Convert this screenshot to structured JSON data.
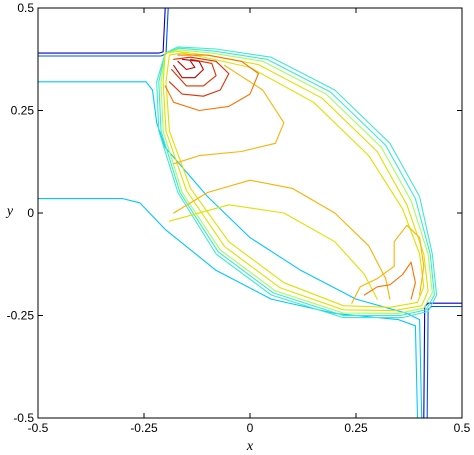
{
  "chart_data": {
    "type": "contour",
    "title": "",
    "xlabel": "x",
    "ylabel": "y",
    "xlim": [
      -0.5,
      0.5
    ],
    "ylim": [
      -0.5,
      0.5
    ],
    "xticks": [
      "-0.5",
      "-0.25",
      "0",
      "0.25",
      "0.5"
    ],
    "yticks": [
      "-0.5",
      "-0.25",
      "0",
      "0.25",
      "0.5"
    ],
    "grid": false,
    "legend": "none",
    "colormap": [
      "#0000c8",
      "#0050ff",
      "#00c8ff",
      "#40e8d0",
      "#a0ff60",
      "#e0e000",
      "#ffb000",
      "#ff7000",
      "#e03000",
      "#c00000"
    ],
    "series": [
      {
        "level": 0,
        "points": [
          [
            -0.5,
            0.39
          ],
          [
            -0.215,
            0.39
          ],
          [
            -0.205,
            0.393
          ],
          [
            -0.2,
            0.5
          ]
        ]
      },
      {
        "level": 1,
        "points": [
          [
            -0.5,
            0.383
          ],
          [
            -0.21,
            0.383
          ],
          [
            -0.198,
            0.388
          ],
          [
            -0.193,
            0.5
          ]
        ]
      },
      {
        "level": 0,
        "points": [
          [
            0.41,
            -0.5
          ],
          [
            0.412,
            -0.228
          ],
          [
            0.42,
            -0.22
          ],
          [
            0.5,
            -0.22
          ]
        ]
      },
      {
        "level": 1,
        "points": [
          [
            0.418,
            -0.5
          ],
          [
            0.42,
            -0.235
          ],
          [
            0.428,
            -0.228
          ],
          [
            0.5,
            -0.228
          ]
        ]
      },
      {
        "level": 2,
        "points": [
          [
            -0.5,
            0.32
          ],
          [
            -0.245,
            0.32
          ],
          [
            -0.23,
            0.3
          ],
          [
            -0.22,
            0.22
          ],
          [
            -0.2,
            0.16
          ],
          [
            -0.1,
            0.04
          ],
          [
            0.0,
            -0.06
          ],
          [
            0.12,
            -0.14
          ],
          [
            0.25,
            -0.21
          ],
          [
            0.37,
            -0.245
          ],
          [
            0.4,
            -0.26
          ],
          [
            0.405,
            -0.5
          ]
        ]
      },
      {
        "level": 2,
        "points": [
          [
            -0.5,
            0.035
          ],
          [
            -0.3,
            0.035
          ],
          [
            -0.26,
            0.025
          ],
          [
            -0.2,
            -0.04
          ],
          [
            -0.08,
            -0.14
          ],
          [
            0.05,
            -0.21
          ],
          [
            0.2,
            -0.245
          ],
          [
            0.35,
            -0.26
          ],
          [
            0.39,
            -0.275
          ],
          [
            0.395,
            -0.5
          ]
        ]
      },
      {
        "level": 3,
        "points": [
          [
            -0.2,
            0.39
          ],
          [
            -0.17,
            0.405
          ],
          [
            -0.08,
            0.4
          ],
          [
            0.05,
            0.38
          ],
          [
            0.2,
            0.3
          ],
          [
            0.33,
            0.17
          ],
          [
            0.4,
            0.04
          ],
          [
            0.43,
            -0.1
          ],
          [
            0.44,
            -0.2
          ],
          [
            0.42,
            -0.24
          ],
          [
            0.36,
            -0.255
          ],
          [
            0.22,
            -0.255
          ],
          [
            0.05,
            -0.2
          ],
          [
            -0.08,
            -0.1
          ],
          [
            -0.17,
            0.05
          ],
          [
            -0.215,
            0.2
          ],
          [
            -0.22,
            0.32
          ],
          [
            -0.2,
            0.39
          ]
        ]
      },
      {
        "level": 3,
        "points": [
          [
            -0.2,
            0.39
          ],
          [
            -0.168,
            0.402
          ],
          [
            -0.085,
            0.395
          ],
          [
            0.04,
            0.375
          ],
          [
            0.19,
            0.295
          ],
          [
            0.32,
            0.165
          ],
          [
            0.39,
            0.035
          ],
          [
            0.425,
            -0.1
          ],
          [
            0.435,
            -0.2
          ],
          [
            0.415,
            -0.236
          ],
          [
            0.355,
            -0.25
          ],
          [
            0.22,
            -0.25
          ],
          [
            0.055,
            -0.195
          ],
          [
            -0.075,
            -0.095
          ],
          [
            -0.165,
            0.05
          ],
          [
            -0.21,
            0.2
          ],
          [
            -0.215,
            0.32
          ],
          [
            -0.2,
            0.39
          ]
        ]
      },
      {
        "level": 4,
        "points": [
          [
            -0.2,
            0.39
          ],
          [
            -0.17,
            0.398
          ],
          [
            -0.09,
            0.39
          ],
          [
            0.03,
            0.37
          ],
          [
            0.18,
            0.29
          ],
          [
            0.31,
            0.16
          ],
          [
            0.38,
            0.03
          ],
          [
            0.42,
            -0.1
          ],
          [
            0.43,
            -0.195
          ],
          [
            0.41,
            -0.232
          ],
          [
            0.35,
            -0.245
          ],
          [
            0.22,
            -0.244
          ],
          [
            0.06,
            -0.19
          ],
          [
            -0.07,
            -0.09
          ],
          [
            -0.16,
            0.05
          ],
          [
            -0.205,
            0.2
          ],
          [
            -0.21,
            0.32
          ],
          [
            -0.2,
            0.39
          ]
        ]
      },
      {
        "level": 5,
        "points": [
          [
            -0.2,
            0.39
          ],
          [
            -0.17,
            0.394
          ],
          [
            -0.095,
            0.384
          ],
          [
            0.02,
            0.362
          ],
          [
            0.17,
            0.28
          ],
          [
            0.3,
            0.15
          ],
          [
            0.37,
            0.02
          ],
          [
            0.41,
            -0.1
          ],
          [
            0.42,
            -0.19
          ],
          [
            0.405,
            -0.226
          ],
          [
            0.34,
            -0.238
          ],
          [
            0.22,
            -0.236
          ],
          [
            0.07,
            -0.182
          ],
          [
            -0.06,
            -0.082
          ],
          [
            -0.15,
            0.055
          ],
          [
            -0.198,
            0.2
          ],
          [
            -0.205,
            0.32
          ],
          [
            -0.2,
            0.39
          ]
        ]
      },
      {
        "level": 5,
        "points": [
          [
            -0.19,
            0.385
          ],
          [
            -0.16,
            0.39
          ],
          [
            -0.1,
            0.378
          ],
          [
            0.0,
            0.355
          ],
          [
            0.15,
            0.27
          ],
          [
            0.28,
            0.14
          ],
          [
            0.36,
            0.01
          ],
          [
            0.4,
            -0.1
          ],
          [
            0.41,
            -0.18
          ],
          [
            0.395,
            -0.218
          ],
          [
            0.33,
            -0.23
          ],
          [
            0.22,
            -0.226
          ],
          [
            0.08,
            -0.17
          ],
          [
            -0.05,
            -0.07
          ],
          [
            -0.14,
            0.06
          ],
          [
            -0.19,
            0.2
          ],
          [
            -0.198,
            0.32
          ],
          [
            -0.19,
            0.385
          ]
        ]
      },
      {
        "level": 6,
        "points": [
          [
            -0.06,
            0.36
          ],
          [
            0.03,
            0.3
          ],
          [
            0.08,
            0.22
          ],
          [
            0.06,
            0.17
          ],
          [
            -0.02,
            0.15
          ],
          [
            -0.12,
            0.14
          ],
          [
            -0.18,
            0.12
          ]
        ]
      },
      {
        "level": 6,
        "points": [
          [
            -0.18,
            0.0
          ],
          [
            -0.1,
            0.05
          ],
          [
            0.0,
            0.08
          ],
          [
            0.1,
            0.06
          ],
          [
            0.2,
            0.0
          ],
          [
            0.28,
            -0.08
          ],
          [
            0.32,
            -0.16
          ],
          [
            0.33,
            -0.21
          ]
        ]
      },
      {
        "level": 6,
        "points": [
          [
            0.24,
            -0.22
          ],
          [
            0.26,
            -0.18
          ],
          [
            0.3,
            -0.16
          ],
          [
            0.34,
            -0.13
          ],
          [
            0.34,
            -0.07
          ],
          [
            0.37,
            -0.03
          ],
          [
            0.4,
            -0.06
          ],
          [
            0.41,
            -0.13
          ],
          [
            0.4,
            -0.2
          ]
        ]
      },
      {
        "level": 5,
        "points": [
          [
            -0.19,
            -0.02
          ],
          [
            -0.05,
            0.02
          ],
          [
            0.08,
            0.0
          ],
          [
            0.2,
            -0.07
          ],
          [
            0.27,
            -0.15
          ],
          [
            0.3,
            -0.21
          ]
        ]
      },
      {
        "level": 7,
        "points": [
          [
            -0.2,
            0.31
          ],
          [
            -0.18,
            0.27
          ],
          [
            -0.12,
            0.25
          ],
          [
            -0.05,
            0.26
          ],
          [
            0.0,
            0.29
          ],
          [
            0.02,
            0.34
          ],
          [
            -0.02,
            0.37
          ],
          [
            -0.1,
            0.385
          ],
          [
            -0.17,
            0.385
          ]
        ]
      },
      {
        "level": 7,
        "points": [
          [
            0.27,
            -0.2
          ],
          [
            0.3,
            -0.18
          ],
          [
            0.33,
            -0.175
          ],
          [
            0.36,
            -0.15
          ],
          [
            0.38,
            -0.12
          ],
          [
            0.39,
            -0.17
          ],
          [
            0.38,
            -0.21
          ]
        ]
      },
      {
        "level": 8,
        "points": [
          [
            -0.19,
            0.32
          ],
          [
            -0.16,
            0.29
          ],
          [
            -0.11,
            0.285
          ],
          [
            -0.07,
            0.3
          ],
          [
            -0.05,
            0.34
          ],
          [
            -0.08,
            0.37
          ],
          [
            -0.14,
            0.38
          ],
          [
            -0.18,
            0.375
          ]
        ]
      },
      {
        "level": 8,
        "points": [
          [
            -0.185,
            0.35
          ],
          [
            -0.15,
            0.31
          ],
          [
            -0.11,
            0.31
          ],
          [
            -0.08,
            0.335
          ],
          [
            -0.09,
            0.365
          ],
          [
            -0.14,
            0.375
          ]
        ]
      },
      {
        "level": 9,
        "points": [
          [
            -0.18,
            0.36
          ],
          [
            -0.16,
            0.33
          ],
          [
            -0.13,
            0.33
          ],
          [
            -0.11,
            0.35
          ],
          [
            -0.12,
            0.37
          ],
          [
            -0.16,
            0.375
          ]
        ]
      },
      {
        "level": 9,
        "points": [
          [
            -0.17,
            0.37
          ],
          [
            -0.15,
            0.35
          ],
          [
            -0.13,
            0.355
          ],
          [
            -0.14,
            0.37
          ]
        ]
      }
    ]
  }
}
